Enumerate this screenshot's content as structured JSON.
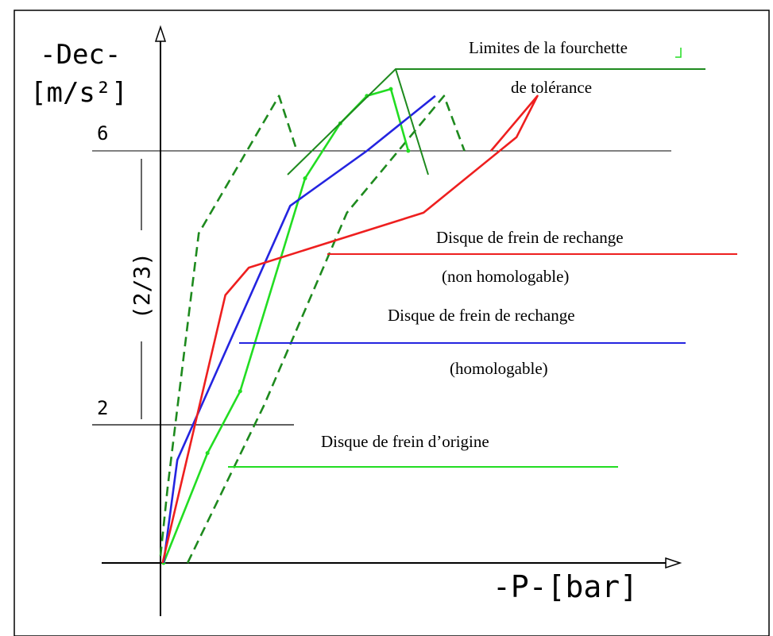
{
  "chart_data": {
    "type": "line",
    "title": "",
    "ylabel_line1": "-Dec-",
    "ylabel_line2": "[m/s²]",
    "xlabel": "-P-[bar]",
    "y_tick_labels": [
      "6",
      "2"
    ],
    "y_ticks": [
      6,
      2
    ],
    "range_label": "(2/3)",
    "ylim": [
      0,
      7.9
    ],
    "xlim": [
      0,
      100
    ],
    "grid": false,
    "annotations": {
      "tolerance": [
        "Limites de la fourchette",
        "de tolérance"
      ],
      "non_homologable": [
        "Disque de frein de rechange",
        "(non homologable)"
      ],
      "homologable": [
        "Disque de frein de rechange",
        "(homologable)"
      ],
      "origine": [
        "Disque de frein d’origine"
      ]
    },
    "series": [
      {
        "key": "tol_upper",
        "color": "#1e8a1e",
        "dash": true,
        "points": [
          [
            0,
            0.1
          ],
          [
            1.4,
            1.1
          ],
          [
            7.5,
            4.8
          ],
          [
            23.2,
            6.8
          ],
          [
            26.7,
            6.0
          ]
        ]
      },
      {
        "key": "tol_lower",
        "color": "#1e8a1e",
        "dash": true,
        "points": [
          [
            5.3,
            0
          ],
          [
            20.3,
            2.3
          ],
          [
            36.5,
            5.1
          ],
          [
            55.5,
            6.8
          ],
          [
            59.5,
            6.0
          ]
        ]
      },
      {
        "key": "original",
        "color": "#22dd22",
        "dash": false,
        "marker": true,
        "points": [
          [
            0.6,
            0
          ],
          [
            9.2,
            1.6
          ],
          [
            15.6,
            2.5
          ],
          [
            28.3,
            5.6
          ],
          [
            35.2,
            6.4
          ],
          [
            40.4,
            6.8
          ],
          [
            45.1,
            6.9
          ],
          [
            48.5,
            6.0
          ]
        ]
      },
      {
        "key": "homologable",
        "color": "#2424e0",
        "dash": false,
        "points": [
          [
            0.6,
            0
          ],
          [
            3.3,
            1.5
          ],
          [
            25.4,
            5.2
          ],
          [
            40.4,
            6.0
          ],
          [
            53.8,
            6.8
          ]
        ]
      },
      {
        "key": "non_homologable",
        "color": "#ee1f1f",
        "dash": false,
        "points": [
          [
            0.4,
            0
          ],
          [
            12.7,
            3.9
          ],
          [
            17.3,
            4.3
          ],
          [
            51.5,
            5.1
          ],
          [
            69.7,
            6.2
          ],
          [
            73.8,
            6.8
          ],
          [
            64.7,
            6.0
          ]
        ]
      }
    ]
  }
}
